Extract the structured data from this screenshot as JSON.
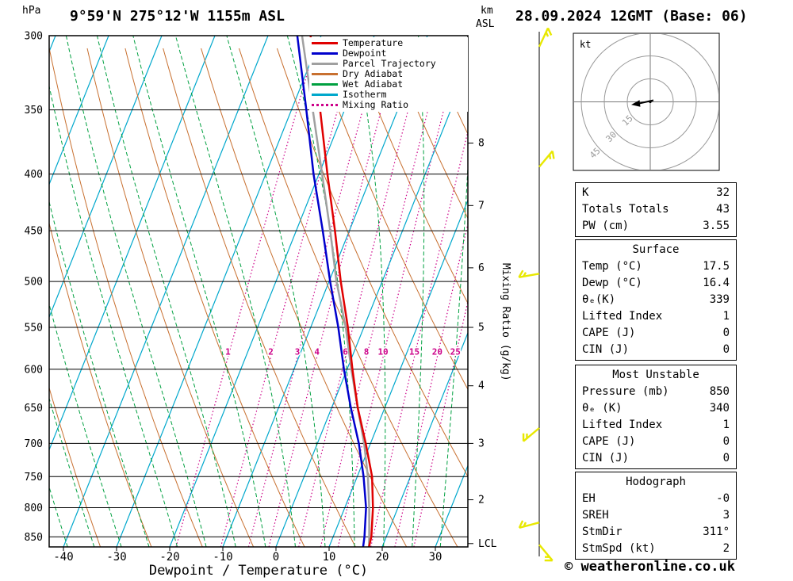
{
  "header": {
    "station": "9°59'N 275°12'W 1155m ASL",
    "datetime": "28.09.2024 12GMT (Base: 06)",
    "pressure_unit_label": "hPa",
    "km_label": "km",
    "asl_label": "ASL"
  },
  "axes": {
    "x_label": "Dewpoint / Temperature (°C)",
    "mixing_ratio_axis_label": "Mixing Ratio (g/kg)",
    "lcl_label": "LCL"
  },
  "footer": {
    "copyright": "© weatheronline.co.uk"
  },
  "legend": {
    "items": [
      {
        "label": "Temperature",
        "color": "#e00000",
        "dash": ""
      },
      {
        "label": "Dewpoint",
        "color": "#0000cc",
        "dash": ""
      },
      {
        "label": "Parcel Trajectory",
        "color": "#a0a0a0",
        "dash": ""
      },
      {
        "label": "Dry Adiabat",
        "color": "#c87030",
        "dash": ""
      },
      {
        "label": "Wet Adiabat",
        "color": "#00a040",
        "dash": ""
      },
      {
        "label": "Isotherm",
        "color": "#00a8cc",
        "dash": ""
      },
      {
        "label": "Mixing Ratio",
        "color": "#cc0088",
        "dash": "dotted"
      }
    ]
  },
  "chart_data": {
    "type": "skew-t log-p sounding",
    "title": "9°59'N 275°12'W 1155m ASL",
    "valid": "28.09.2024 12GMT (Base: 06)",
    "xlabel": "Dewpoint / Temperature (°C)",
    "pressure_ticks_hPa": [
      300,
      350,
      400,
      450,
      500,
      550,
      600,
      650,
      700,
      750,
      800,
      850
    ],
    "temperature_ticks_C": [
      -40,
      -30,
      -20,
      -10,
      0,
      10,
      20,
      30
    ],
    "pressure_range_hPa": [
      300,
      868
    ],
    "skew": 0.4,
    "km_ticks": [
      {
        "km": 8,
        "p": 375
      },
      {
        "km": 7,
        "p": 427
      },
      {
        "km": 6,
        "p": 486
      },
      {
        "km": 5,
        "p": 550
      },
      {
        "km": 4,
        "p": 621
      },
      {
        "km": 3,
        "p": 700
      },
      {
        "km": 2,
        "p": 787
      }
    ],
    "lcl_pressure_hPa": 862,
    "isotherms_C": [
      -80,
      -70,
      -60,
      -50,
      -40,
      -30,
      -20,
      -10,
      0,
      10,
      20,
      30,
      40
    ],
    "dry_adiabats_K": [
      230,
      240,
      250,
      260,
      270,
      280,
      290,
      300,
      310,
      320,
      330,
      340,
      350,
      360,
      370,
      380,
      390,
      400,
      410
    ],
    "wet_adiabats_C": [
      -40,
      -35,
      -30,
      -25,
      -20,
      -15,
      -10,
      -5,
      0,
      5,
      10,
      15,
      20,
      25,
      30,
      35
    ],
    "mixing_ratio_lines_gkg": [
      1,
      2,
      3,
      4,
      6,
      8,
      10,
      15,
      20,
      25
    ],
    "mixing_ratio_label_pressure_hPa": 585,
    "sounding": {
      "pressure_hPa": [
        868,
        850,
        800,
        750,
        700,
        650,
        600,
        550,
        500,
        450,
        400,
        350,
        300
      ],
      "temperature_C": [
        17.5,
        17.2,
        15.3,
        12.8,
        9.1,
        4.9,
        1.0,
        -3.0,
        -7.8,
        -12.7,
        -18.4,
        -24.6,
        -32.0
      ],
      "dewpoint_C": [
        16.4,
        15.9,
        14.0,
        11.2,
        7.8,
        3.6,
        -0.6,
        -4.8,
        -9.8,
        -15.0,
        -21.0,
        -27.2,
        -34.5
      ],
      "parcel_C": [
        17.5,
        16.8,
        14.6,
        12.0,
        8.8,
        4.9,
        0.8,
        -3.4,
        -8.6,
        -13.6,
        -19.4,
        -26.0,
        -33.6
      ]
    },
    "wind_barbs": [
      {
        "p": 307,
        "dir_deg": 25,
        "spd_kt": 5
      },
      {
        "p": 394,
        "dir_deg": 40,
        "spd_kt": 5
      },
      {
        "p": 492,
        "dir_deg": 260,
        "spd_kt": 5
      },
      {
        "p": 678,
        "dir_deg": 230,
        "spd_kt": 5
      },
      {
        "p": 825,
        "dir_deg": 255,
        "spd_kt": 5
      },
      {
        "p": 864,
        "dir_deg": 140,
        "spd_kt": 5
      }
    ]
  },
  "hodograph": {
    "unit_label": "kt",
    "rings_kt": [
      15,
      30,
      45
    ],
    "storm_motion": {
      "dir_label": "311°",
      "spd_kt": 2
    }
  },
  "tables": {
    "indices": {
      "rows": [
        {
          "label": "K",
          "value": "32"
        },
        {
          "label": "Totals Totals",
          "value": "43"
        },
        {
          "label": "PW (cm)",
          "value": "3.55"
        }
      ]
    },
    "surface": {
      "title": "Surface",
      "rows": [
        {
          "label": "Temp (°C)",
          "value": "17.5"
        },
        {
          "label": "Dewp (°C)",
          "value": "16.4"
        },
        {
          "label": "θₑ(K)",
          "value": "339"
        },
        {
          "label": "Lifted Index",
          "value": "1"
        },
        {
          "label": "CAPE (J)",
          "value": "0"
        },
        {
          "label": "CIN (J)",
          "value": "0"
        }
      ]
    },
    "most_unstable": {
      "title": "Most Unstable",
      "rows": [
        {
          "label": "Pressure (mb)",
          "value": "850"
        },
        {
          "label": "θₑ (K)",
          "value": "340"
        },
        {
          "label": "Lifted Index",
          "value": "1"
        },
        {
          "label": "CAPE (J)",
          "value": "0"
        },
        {
          "label": "CIN (J)",
          "value": "0"
        }
      ]
    },
    "hodograph": {
      "title": "Hodograph",
      "rows": [
        {
          "label": "EH",
          "value": "-0"
        },
        {
          "label": "SREH",
          "value": "3"
        },
        {
          "label": "StmDir",
          "value": "311°"
        },
        {
          "label": "StmSpd (kt)",
          "value": "2"
        }
      ]
    }
  }
}
